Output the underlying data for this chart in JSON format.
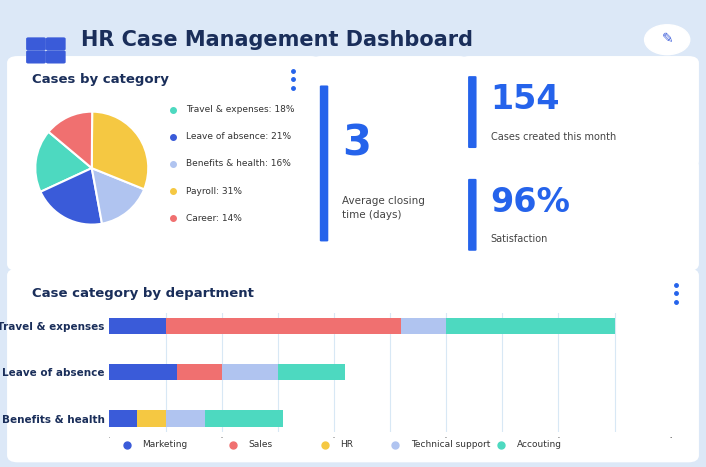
{
  "bg_color": "#dce8f7",
  "title": "HR Case Management Dashboard",
  "title_color": "#1a2e5a",
  "card_bg": "#ffffff",
  "pie_title": "Cases by category",
  "pie_labels": [
    "Travel & expenses",
    "Leave of absence",
    "Benefits & health",
    "Payroll",
    "Career"
  ],
  "pie_values": [
    18,
    21,
    16,
    31,
    14
  ],
  "pie_colors": [
    "#4dd9c0",
    "#3a5bd9",
    "#b0c4f0",
    "#f5c842",
    "#f07070"
  ],
  "stat1_value": "3",
  "stat1_label": "Average closing\ntime (days)",
  "stat1_color": "#2563eb",
  "stat1_label_color": "#444444",
  "stat2_value": "154",
  "stat2_label": "Cases created this month",
  "stat2_color": "#2563eb",
  "stat2_label_color": "#444444",
  "stat3_value": "96%",
  "stat3_label": "Satisfaction",
  "stat3_color": "#2563eb",
  "stat3_label_color": "#444444",
  "bar_title": "Case category by department",
  "bar_categories": [
    "Benefits & health",
    "Leave of absence",
    "Travel & expenses"
  ],
  "bar_dept_labels": [
    "Marketing",
    "Sales",
    "HR",
    "Technical support",
    "Accouting"
  ],
  "bar_dept_colors": [
    "#3a5bd9",
    "#f07070",
    "#f5c842",
    "#b0c4f0",
    "#4dd9c0"
  ],
  "bar_data": {
    "Travel & expenses": [
      10,
      42,
      0,
      8,
      30
    ],
    "Leave of absence": [
      12,
      8,
      0,
      10,
      12
    ],
    "Benefits & health": [
      5,
      0,
      5,
      7,
      14
    ]
  },
  "accent_blue": "#2563eb",
  "dots_color": "#2563eb",
  "grid_color": "#d8e8f5"
}
